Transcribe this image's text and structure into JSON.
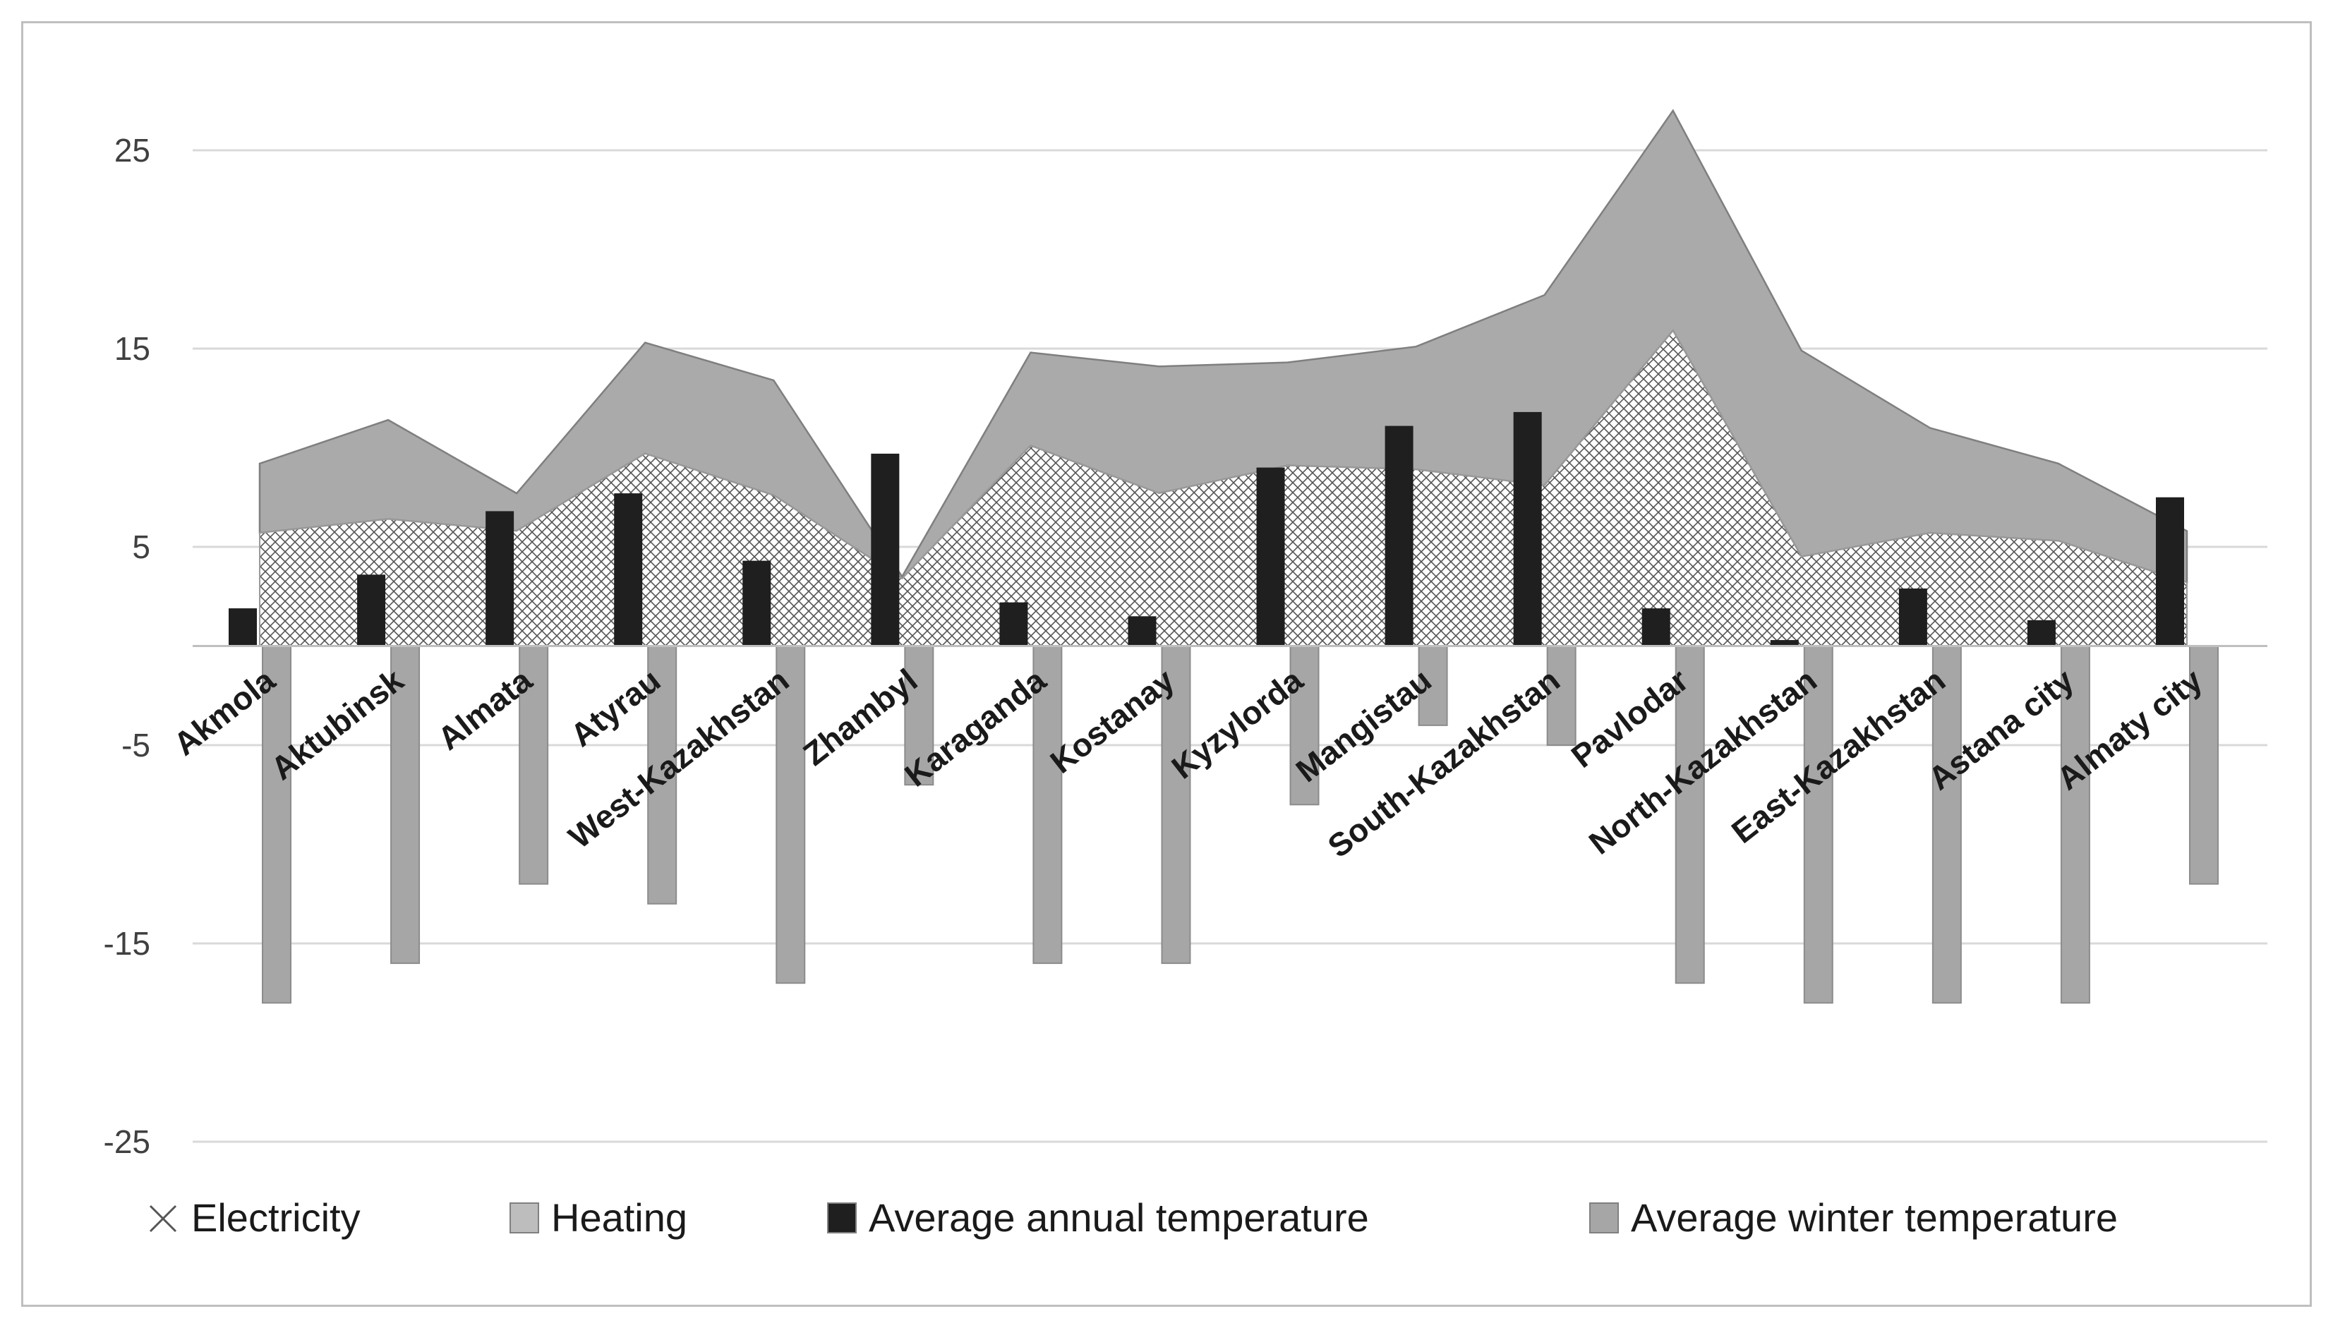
{
  "chart_data": {
    "type": "area",
    "categories": [
      "Akmola",
      "Aktubinsk",
      "Almata",
      "Atyrau",
      "West-Kazakhstan",
      "Zhambyl",
      "Karaganda",
      "Kostanay",
      "Kyzylorda",
      "Mangistau",
      "South-Kazakhstan",
      "Pavlodar",
      "North-Kazakhstan",
      "East-Kazakhstan",
      "Astana city",
      "Almaty city"
    ],
    "y_ticks": [
      "25",
      "15",
      "5",
      "-5",
      "-15",
      "-25"
    ],
    "ylim": [
      -25,
      25
    ],
    "grid": true,
    "legend_position": "bottom",
    "series": [
      {
        "name": "Electricity",
        "kind": "stacked-area",
        "fill": "crosshatch",
        "values": [
          5.7,
          6.4,
          5.8,
          9.7,
          7.6,
          3.4,
          10.1,
          7.7,
          9.1,
          8.9,
          8.1,
          15.9,
          4.5,
          5.7,
          5.3,
          3.2
        ]
      },
      {
        "name": "Heating",
        "kind": "stacked-area",
        "color": "#aaaaaa",
        "values": [
          3.5,
          5.0,
          1.9,
          5.6,
          5.8,
          0.1,
          4.7,
          6.4,
          5.2,
          6.2,
          9.6,
          11.1,
          10.4,
          5.3,
          3.9,
          2.6
        ]
      },
      {
        "name": "Average annual temperature",
        "kind": "bar",
        "color": "#1f1f1f",
        "values": [
          1.9,
          3.6,
          6.8,
          7.7,
          4.3,
          9.7,
          2.2,
          1.5,
          9.0,
          11.1,
          11.8,
          1.9,
          0.3,
          2.9,
          1.3,
          7.5
        ]
      },
      {
        "name": "Average winter temperature",
        "kind": "bar",
        "color": "#a6a6a6",
        "values": [
          -18,
          -16,
          -12,
          -13,
          -17,
          -7,
          -16,
          -16,
          -8,
          -4,
          -5,
          -17,
          -18,
          -18,
          -18,
          -12
        ]
      }
    ],
    "legend": [
      {
        "label": "Electricity",
        "swatch": "cross"
      },
      {
        "label": "Heating",
        "swatch": "light-box"
      },
      {
        "label": "Average annual temperature",
        "swatch": "dark-box"
      },
      {
        "label": "Average winter temperature",
        "swatch": "gray-box"
      }
    ]
  }
}
